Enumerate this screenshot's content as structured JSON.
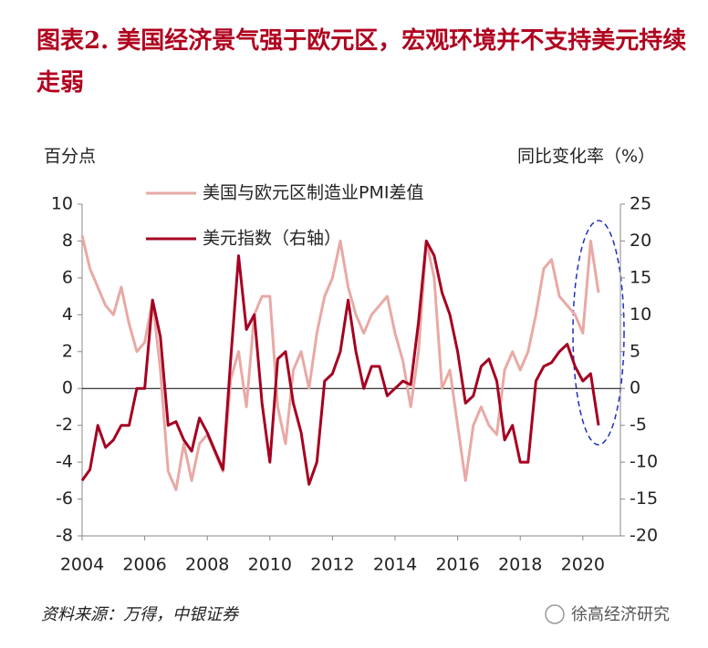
{
  "chart_data": {
    "type": "line",
    "title": "图表2. 美国经济景气强于欧元区，宏观环境并不支持美元持续走弱",
    "ylabel": "百分点",
    "y2label": "同比变化率（%）",
    "source": "资料来源：万得，中银证券",
    "watermark": "徐高经济研究",
    "legend": "upper left",
    "x": [
      2004.0,
      2004.25,
      2004.5,
      2004.75,
      2005.0,
      2005.25,
      2005.5,
      2005.75,
      2006.0,
      2006.25,
      2006.5,
      2006.75,
      2007.0,
      2007.25,
      2007.5,
      2007.75,
      2008.0,
      2008.25,
      2008.5,
      2008.75,
      2009.0,
      2009.25,
      2009.5,
      2009.75,
      2010.0,
      2010.25,
      2010.5,
      2010.75,
      2011.0,
      2011.25,
      2011.5,
      2011.75,
      2012.0,
      2012.25,
      2012.5,
      2012.75,
      2013.0,
      2013.25,
      2013.5,
      2013.75,
      2014.0,
      2014.25,
      2014.5,
      2014.75,
      2015.0,
      2015.25,
      2015.5,
      2015.75,
      2016.0,
      2016.25,
      2016.5,
      2016.75,
      2017.0,
      2017.25,
      2017.5,
      2017.75,
      2018.0,
      2018.25,
      2018.5,
      2018.75,
      2019.0,
      2019.25,
      2019.5,
      2019.75,
      2020.0,
      2020.25,
      2020.5
    ],
    "series": [
      {
        "name": "美国与欧元区制造业PMI差值",
        "color": "#e8a9a5",
        "axis": "y",
        "values": [
          8.3,
          6.5,
          5.5,
          4.5,
          4.0,
          5.5,
          3.5,
          2.0,
          2.5,
          4.8,
          1.0,
          -4.5,
          -5.5,
          -3.0,
          -5.0,
          -3.0,
          -2.5,
          -3.5,
          -4.5,
          0.5,
          2.0,
          -1.0,
          4.0,
          5.0,
          5.0,
          -1.0,
          -3.0,
          1.0,
          2.0,
          0.0,
          3.0,
          5.0,
          6.0,
          8.0,
          5.5,
          4.0,
          3.0,
          4.0,
          4.5,
          5.0,
          3.0,
          1.5,
          -1.0,
          2.0,
          8.0,
          6.0,
          0.0,
          1.0,
          -2.0,
          -5.0,
          -2.0,
          -1.0,
          -2.0,
          -2.5,
          1.0,
          2.0,
          1.0,
          2.0,
          4.0,
          6.5,
          7.0,
          5.0,
          4.5,
          4.0,
          3.0,
          8.0,
          5.2
        ]
      },
      {
        "name": "美元指数（右轴）",
        "color": "#a50021",
        "axis": "y2",
        "values": [
          -12.5,
          -11,
          -5,
          -8,
          -7,
          -5,
          -5,
          0,
          0,
          12,
          7,
          -5,
          -4.5,
          -7,
          -8.5,
          -4,
          -6,
          -8.5,
          -11,
          4,
          18,
          8,
          10,
          -2,
          -10,
          4,
          5,
          -2,
          -6,
          -13,
          -10,
          1,
          2,
          5,
          12,
          5,
          0,
          3,
          3,
          -1,
          0,
          1,
          0.5,
          9,
          20,
          18,
          13,
          10,
          5,
          -2,
          -1,
          3,
          4,
          1,
          -7,
          -5,
          -10,
          -10,
          1,
          3,
          3.5,
          5,
          6,
          3,
          1,
          2,
          -5
        ]
      }
    ],
    "xlim": [
      2004,
      2021.2
    ],
    "xticks": [
      2004,
      2006,
      2008,
      2010,
      2012,
      2014,
      2016,
      2018,
      2020
    ],
    "ylim": [
      -8,
      10
    ],
    "yticks": [
      -8,
      -6,
      -4,
      -2,
      0,
      2,
      4,
      6,
      8,
      10
    ],
    "y2lim": [
      -20,
      25
    ],
    "y2ticks": [
      -20,
      -15,
      -10,
      -5,
      0,
      5,
      10,
      15,
      20,
      25
    ]
  }
}
